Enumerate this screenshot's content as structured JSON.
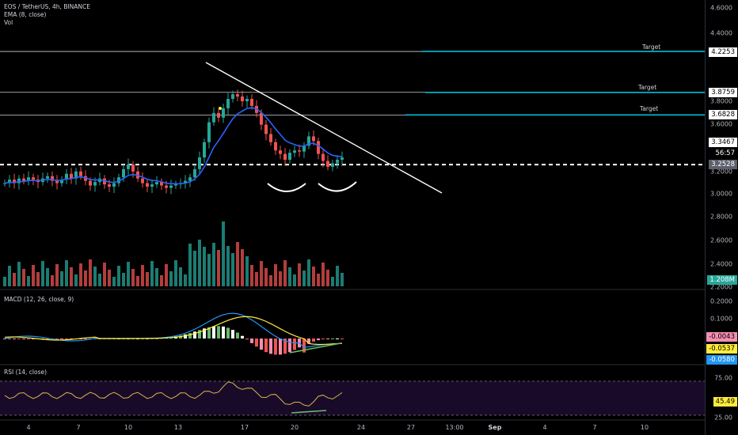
{
  "chart_title": "EOS / TetherUS, 4h, BINANCE",
  "indicators": {
    "ema": "EMA (8, close)",
    "vol": "Vol",
    "macd": "MACD (12, 26, close, 9)",
    "rsi": "RSI (14, close)"
  },
  "colors": {
    "bg": "#000000",
    "up": "#26a69a",
    "down": "#ef5350",
    "ema": "#2962ff",
    "target": "#00bcd4",
    "macd_line": "#2196f3",
    "signal_line": "#ffeb3b",
    "rsi_band": "#1a0a2a"
  },
  "price_axis": {
    "ticks": [
      "4.6000",
      "4.4000",
      "3.8000",
      "3.6000",
      "3.2000",
      "3.0000",
      "2.8000",
      "2.6000",
      "2.4000",
      "2.2000"
    ],
    "tags": [
      "4.2253",
      "3.8759",
      "3.6828",
      "3.3467",
      "56:57",
      "3.2528",
      "1.208M"
    ]
  },
  "target_label": "Target",
  "macd_axis": {
    "ticks": [
      "0.2000",
      "0.1000"
    ],
    "tags": [
      "-0.0043",
      "-0.0537",
      "-0.0580"
    ]
  },
  "rsi_axis": {
    "ticks": [
      "75.00",
      "25.00"
    ],
    "tag": "45.49"
  },
  "x_axis": [
    "4",
    "7",
    "10",
    "13",
    "17",
    "20",
    "24",
    "27",
    "13:00",
    "Sep",
    "4",
    "7",
    "10"
  ],
  "chart_data": {
    "type": "candlestick",
    "title": "EOS / TetherUS, 4h, BINANCE",
    "x_ticks": [
      "4",
      "7",
      "10",
      "13",
      "17",
      "20",
      "24",
      "27",
      "13:00",
      "Sep",
      "4",
      "7",
      "10"
    ],
    "close_series": [
      3.1,
      3.13,
      3.1,
      3.14,
      3.12,
      3.15,
      3.13,
      3.11,
      3.14,
      3.16,
      3.12,
      3.1,
      3.13,
      3.18,
      3.14,
      3.2,
      3.16,
      3.12,
      3.08,
      3.11,
      3.14,
      3.09,
      3.07,
      3.1,
      3.15,
      3.22,
      3.26,
      3.2,
      3.14,
      3.1,
      3.07,
      3.09,
      3.11,
      3.08,
      3.06,
      3.08,
      3.09,
      3.1,
      3.12,
      3.15,
      3.22,
      3.32,
      3.45,
      3.62,
      3.7,
      3.66,
      3.74,
      3.82,
      3.86,
      3.84,
      3.8,
      3.82,
      3.76,
      3.7,
      3.6,
      3.52,
      3.45,
      3.38,
      3.35,
      3.3,
      3.36,
      3.38,
      3.37,
      3.42,
      3.5,
      3.46,
      3.35,
      3.29,
      3.24,
      3.27,
      3.3,
      3.32
    ],
    "levels": [
      {
        "label": "Target",
        "value": 4.2253
      },
      {
        "label": "Target",
        "value": 3.8759
      },
      {
        "label": "Target",
        "value": 3.6828
      },
      {
        "label": "",
        "value": 3.3467
      }
    ],
    "current_price": 3.2528,
    "volume_last": "1.208M",
    "macd": {
      "macd": -0.058,
      "signal": -0.0537,
      "hist": -0.0043
    },
    "rsi": {
      "value": 45.49,
      "bands": [
        25,
        75
      ]
    },
    "ylim": [
      2.2,
      4.6
    ]
  }
}
